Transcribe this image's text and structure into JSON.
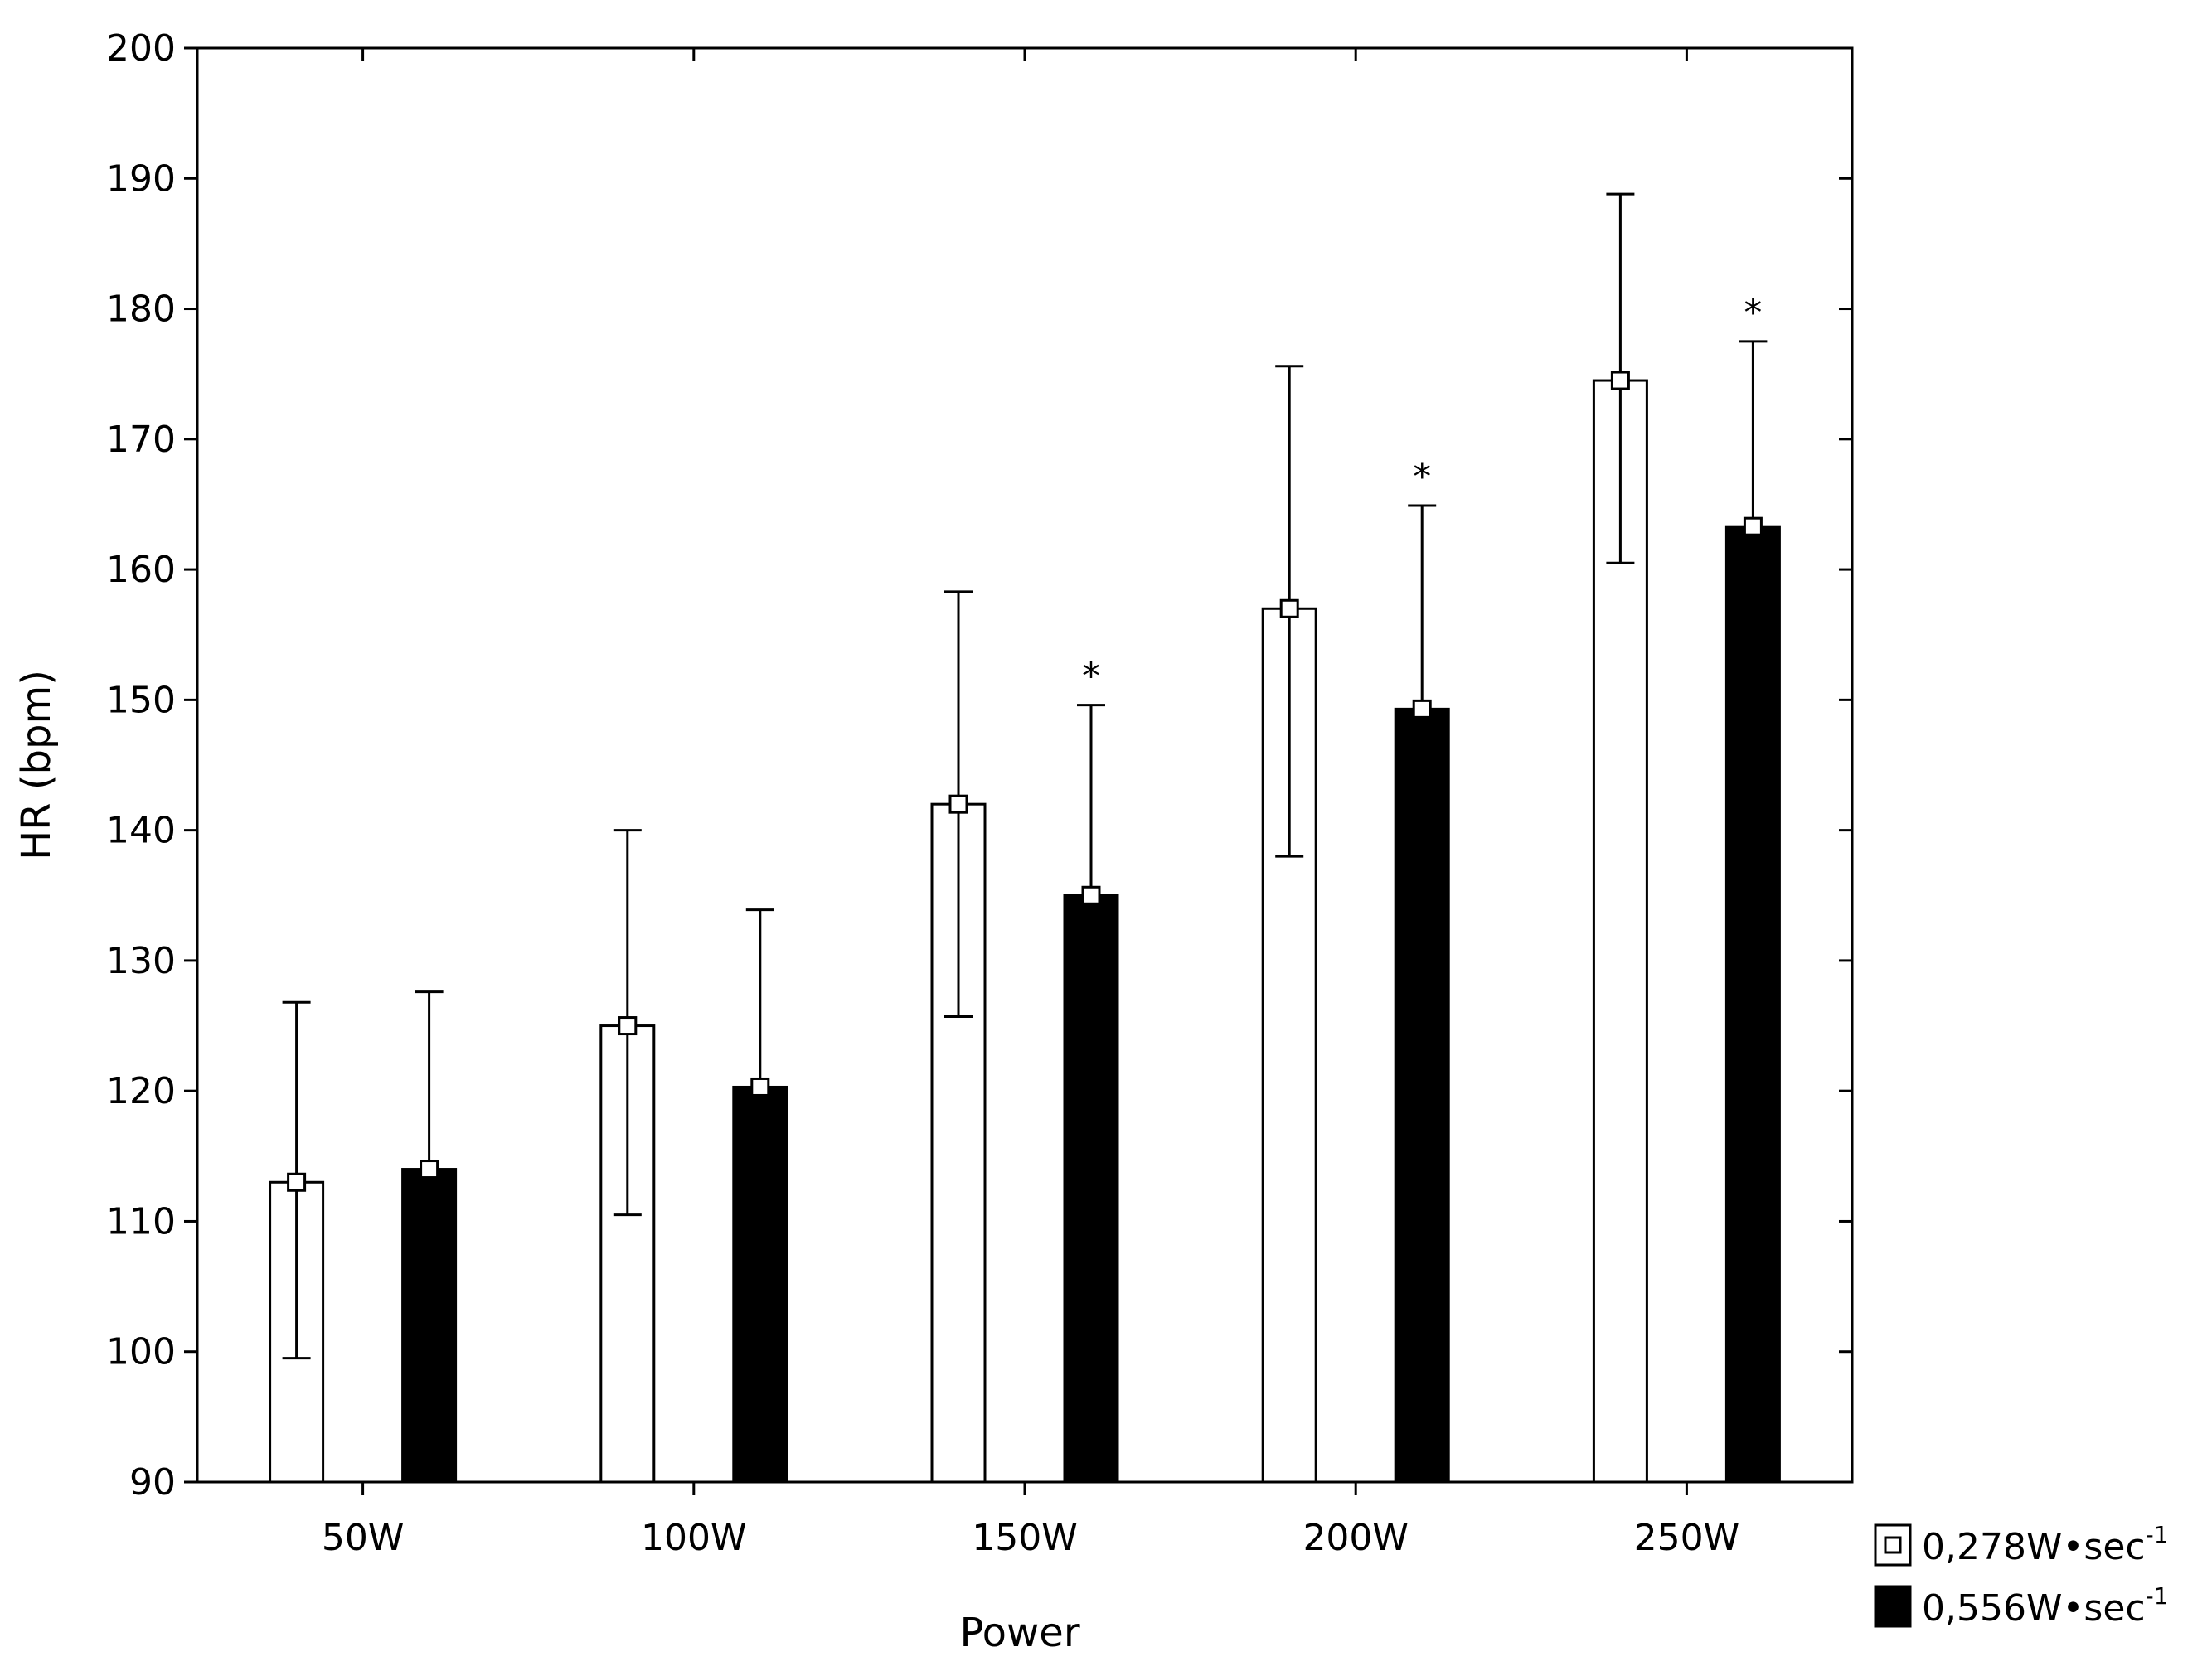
{
  "chart_data": {
    "type": "bar",
    "xlabel": "Power",
    "ylabel": "HR (bpm)",
    "ylim": [
      90,
      200
    ],
    "yticks": [
      90,
      100,
      110,
      120,
      130,
      140,
      150,
      160,
      170,
      180,
      190,
      200
    ],
    "categories": [
      "50W",
      "100W",
      "150W",
      "200W",
      "250W"
    ],
    "series": [
      {
        "name": "0,278W•sec",
        "name_superscript": "-1",
        "fill": "#ffffff",
        "values": [
          113,
          125,
          142,
          157,
          174.5
        ],
        "error_low": [
          99.5,
          110.5,
          125.7,
          138,
          160.5
        ],
        "error_high": [
          126.8,
          140,
          158.3,
          175.6,
          188.8
        ]
      },
      {
        "name": "0,556W•sec",
        "name_superscript": "-1",
        "fill": "#000000",
        "values": [
          114,
          120.3,
          135,
          149.3,
          163.3
        ],
        "error_low": [
          114,
          120.3,
          135,
          149.3,
          163.3
        ],
        "error_high": [
          127.6,
          133.9,
          149.6,
          164.9,
          177.5
        ]
      }
    ],
    "significance_marker": "*",
    "significant_categories": [
      "150W",
      "200W",
      "250W"
    ],
    "legend_position": "bottom-right",
    "grid": false
  }
}
